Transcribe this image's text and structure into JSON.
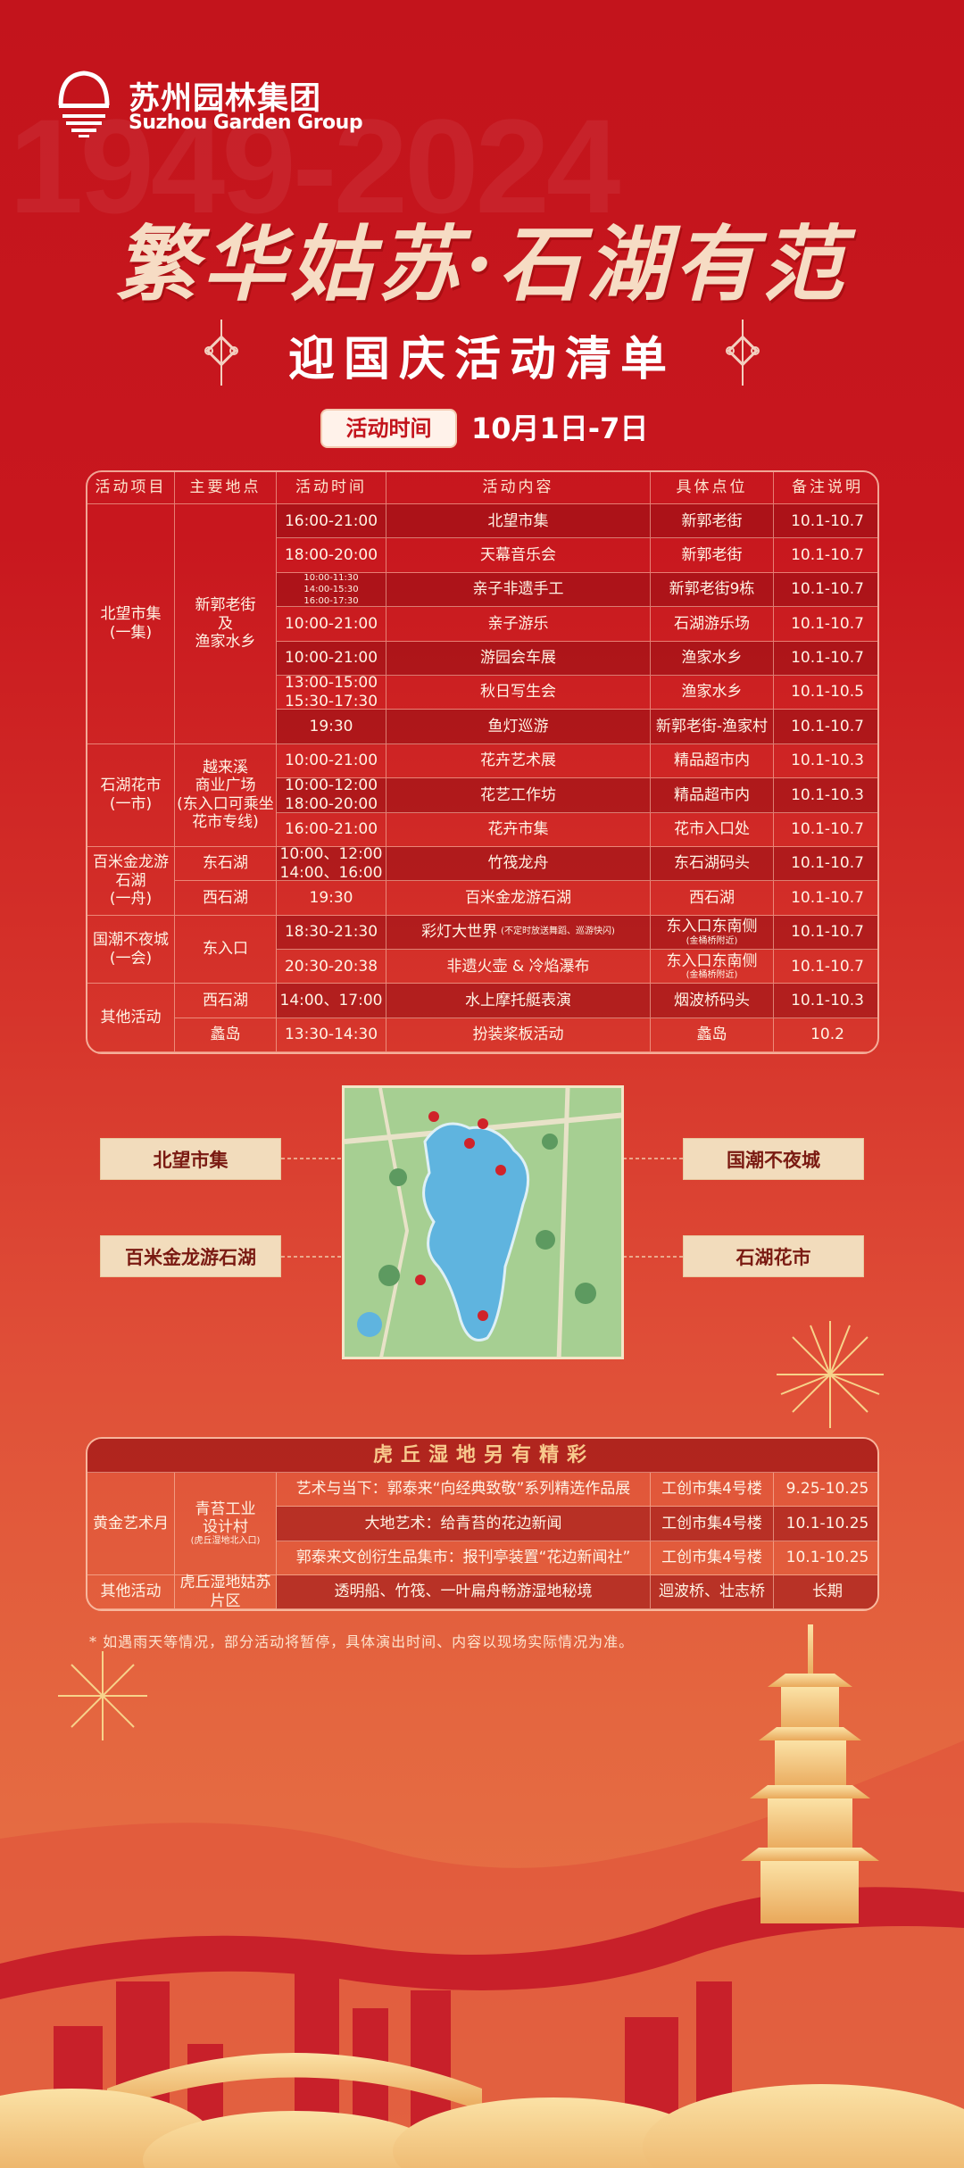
{
  "brand": {
    "name_cn": "苏州园林集团",
    "name_en": "Suzhou Garden Group",
    "watermark": "1949-2024"
  },
  "header": {
    "title": "繁华姑苏·石湖有范",
    "subtitle": "迎国庆活动清单",
    "time_label": "活动时间",
    "time_value": "10月1日-7日"
  },
  "colors": {
    "primary_red": "#c3141c",
    "cream": "#f6dcc4",
    "gold": "#f7c98c"
  },
  "schedule": {
    "columns": [
      "活动项目",
      "主要地点",
      "活动时间",
      "活动内容",
      "具体点位",
      "备注说明"
    ],
    "groups": [
      {
        "project": "北望市集\n(一集)",
        "location": "新郭老街\n及\n渔家水乡",
        "rows": [
          {
            "time": "16:00-21:00",
            "content": "北望市集",
            "place": "新郭老街",
            "date": "10.1-10.7"
          },
          {
            "time": "18:00-20:00",
            "content": "天幕音乐会",
            "place": "新郭老街",
            "date": "10.1-10.7"
          },
          {
            "time": "10:00-11:30\n14:00-15:30\n16:00-17:30",
            "time_small": true,
            "content": "亲子非遗手工",
            "place": "新郭老街9栋",
            "date": "10.1-10.7"
          },
          {
            "time": "10:00-21:00",
            "content": "亲子游乐",
            "place": "石湖游乐场",
            "date": "10.1-10.7"
          },
          {
            "time": "10:00-21:00",
            "content": "游园会车展",
            "place": "渔家水乡",
            "date": "10.1-10.7"
          },
          {
            "time": "13:00-15:00\n15:30-17:30",
            "content": "秋日写生会",
            "place": "渔家水乡",
            "date": "10.1-10.5"
          },
          {
            "time": "19:30",
            "content": "鱼灯巡游",
            "place": "新郭老街-渔家村",
            "date": "10.1-10.7"
          }
        ]
      },
      {
        "project": "石湖花市\n(一市)",
        "location": "越来溪\n商业广场\n(东入口可乘坐\n花市专线)",
        "rows": [
          {
            "time": "10:00-21:00",
            "content": "花卉艺术展",
            "place": "精品超市内",
            "date": "10.1-10.3"
          },
          {
            "time": "10:00-12:00\n18:00-20:00",
            "content": "花艺工作坊",
            "place": "精品超市内",
            "date": "10.1-10.3"
          },
          {
            "time": "16:00-21:00",
            "content": "花卉市集",
            "place": "花市入口处",
            "date": "10.1-10.7"
          }
        ]
      },
      {
        "project": "百米金龙游石湖\n(一舟)",
        "rows": [
          {
            "location": "东石湖",
            "time": "10:00、12:00\n14:00、16:00",
            "content": "竹筏龙舟",
            "place": "东石湖码头",
            "date": "10.1-10.7"
          },
          {
            "location": "西石湖",
            "time": "19:30",
            "content": "百米金龙游石湖",
            "place": "西石湖",
            "date": "10.1-10.7"
          }
        ]
      },
      {
        "project": "国潮不夜城\n(一会)",
        "location": "东入口",
        "rows": [
          {
            "time": "18:30-21:30",
            "content": "彩灯大世界",
            "content_note": "(不定时放送舞蹈、巡游快闪)",
            "place": "东入口东南侧",
            "place_note": "(金桶桥附近)",
            "date": "10.1-10.7"
          },
          {
            "time": "20:30-20:38",
            "content": "非遗火壶 & 冷焰瀑布",
            "place": "东入口东南侧",
            "place_note": "(金桶桥附近)",
            "date": "10.1-10.7"
          }
        ]
      },
      {
        "project": "其他活动",
        "rows": [
          {
            "location": "西石湖",
            "time": "14:00、17:00",
            "content": "水上摩托艇表演",
            "place": "烟波桥码头",
            "date": "10.1-10.3"
          },
          {
            "location": "蠡岛",
            "time": "13:30-14:30",
            "content": "扮装桨板活动",
            "place": "蠡岛",
            "date": "10.2"
          }
        ]
      }
    ]
  },
  "map": {
    "labels": [
      "北望市集",
      "百米金龙游石湖",
      "国潮不夜城",
      "石湖花市"
    ]
  },
  "huqiu": {
    "title": "虎丘湿地另有精彩",
    "groups": [
      {
        "project": "黄金艺术月",
        "location": "青苔工业\n设计村",
        "location_note": "(虎丘湿地北入口)",
        "rows": [
          {
            "content": "艺术与当下：郭泰来“向经典致敬”系列精选作品展",
            "place": "工创市集4号楼",
            "date": "9.25-10.25"
          },
          {
            "content": "大地艺术：给青苔的花边新闻",
            "place": "工创市集4号楼",
            "date": "10.1-10.25"
          },
          {
            "content": "郭泰来文创衍生品集市：报刊亭装置“花边新闻社”",
            "place": "工创市集4号楼",
            "date": "10.1-10.25"
          }
        ]
      },
      {
        "project": "其他活动",
        "location": "虎丘湿地姑苏片区",
        "rows": [
          {
            "content": "透明船、竹筏、一叶扁舟畅游湿地秘境",
            "place": "迴波桥、壮志桥",
            "date": "长期"
          }
        ]
      }
    ]
  },
  "notice": "* 如遇雨天等情况，部分活动将暂停，具体演出时间、内容以现场实际情况为准。"
}
